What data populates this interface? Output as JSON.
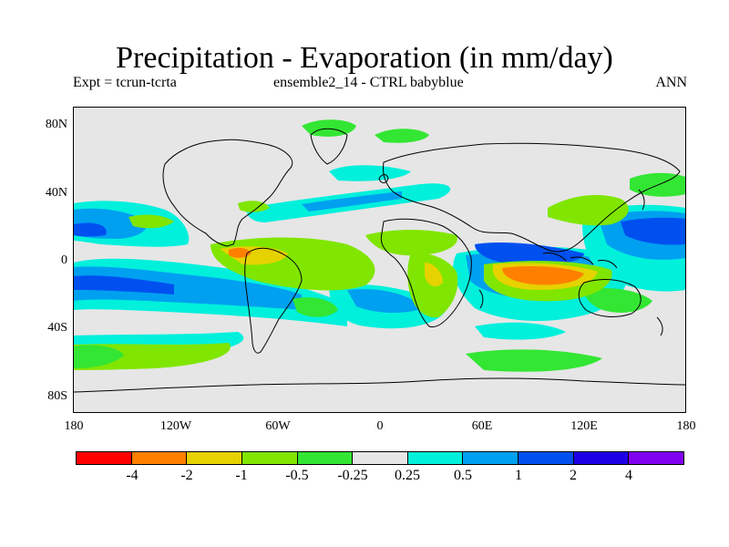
{
  "title": "Precipitation - Evaporation (in mm/day)",
  "subtitle_left": "Expt = tcrun-tcrta",
  "subtitle_center": "ensemble2_14 - CTRL babyblue",
  "subtitle_right": "ANN",
  "lat_ticks": [
    "80N",
    "40N",
    "0",
    "40S",
    "80S"
  ],
  "lon_ticks": [
    "180",
    "120W",
    "60W",
    "0",
    "60E",
    "120E",
    "180"
  ],
  "colorbar": {
    "colors": [
      "#ff0000",
      "#ff8000",
      "#e6d200",
      "#80e600",
      "#33e633",
      "#e6e6e6",
      "#00f0dc",
      "#00a0f0",
      "#0050f0",
      "#1e00e6",
      "#8000f0"
    ],
    "labels": [
      "-4",
      "-2",
      "-1",
      "-0.5",
      "-0.25",
      "0.25",
      "0.5",
      "1",
      "2",
      "4"
    ]
  }
}
